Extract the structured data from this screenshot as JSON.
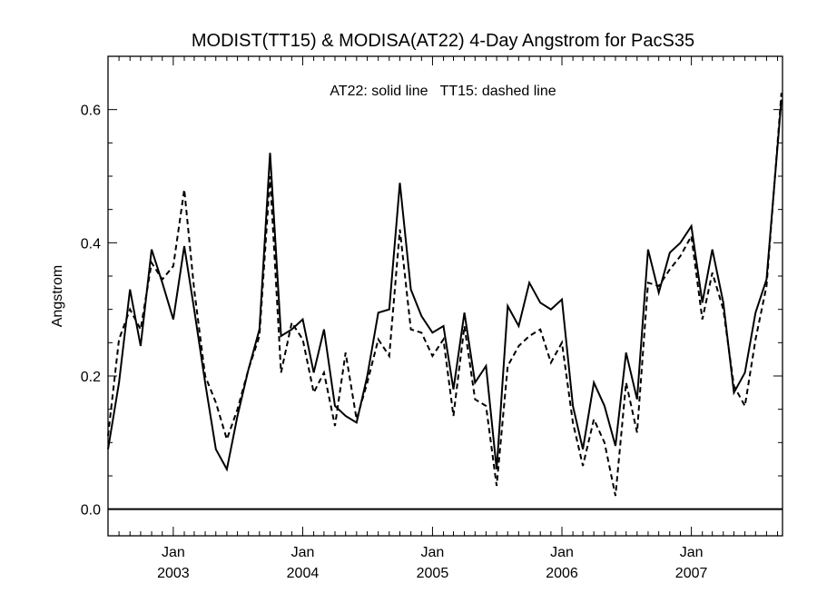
{
  "chart_data": {
    "type": "line",
    "title": "MODIST(TT15) & MODISA(AT22) 4-Day Angstrom for PacS35",
    "annotation": "AT22: solid line   TT15: dashed line",
    "xlabel": "",
    "ylabel": "Angstrom",
    "x_ticks": [
      {
        "month": "Jan",
        "year": "2003",
        "date": "2003-01-01"
      },
      {
        "month": "Jan",
        "year": "2004",
        "date": "2004-01-01"
      },
      {
        "month": "Jan",
        "year": "2005",
        "date": "2005-01-01"
      },
      {
        "month": "Jan",
        "year": "2006",
        "date": "2006-01-01"
      },
      {
        "month": "Jan",
        "year": "2007",
        "date": "2007-01-01"
      }
    ],
    "xlim": [
      "2002-07-01",
      "2007-09-15"
    ],
    "y_ticks": [
      "0.0",
      "0.2",
      "0.4",
      "0.6"
    ],
    "ylim": [
      -0.04,
      0.68
    ],
    "zero_line": 0.0,
    "series": [
      {
        "name": "AT22",
        "style": "solid",
        "color": "#000000",
        "points": [
          [
            "2002-07-01",
            0.09
          ],
          [
            "2002-08-01",
            0.19
          ],
          [
            "2002-09-01",
            0.33
          ],
          [
            "2002-10-01",
            0.245
          ],
          [
            "2002-11-01",
            0.39
          ],
          [
            "2002-12-01",
            0.34
          ],
          [
            "2003-01-01",
            0.285
          ],
          [
            "2003-02-01",
            0.395
          ],
          [
            "2003-03-01",
            0.3
          ],
          [
            "2003-04-01",
            0.19
          ],
          [
            "2003-05-01",
            0.09
          ],
          [
            "2003-06-01",
            0.06
          ],
          [
            "2003-07-01",
            0.14
          ],
          [
            "2003-08-01",
            0.21
          ],
          [
            "2003-09-01",
            0.27
          ],
          [
            "2003-10-01",
            0.535
          ],
          [
            "2003-11-01",
            0.26
          ],
          [
            "2003-12-01",
            0.27
          ],
          [
            "2004-01-01",
            0.285
          ],
          [
            "2004-02-01",
            0.205
          ],
          [
            "2004-03-01",
            0.27
          ],
          [
            "2004-04-01",
            0.155
          ],
          [
            "2004-05-01",
            0.14
          ],
          [
            "2004-06-01",
            0.13
          ],
          [
            "2004-07-01",
            0.2
          ],
          [
            "2004-08-01",
            0.295
          ],
          [
            "2004-09-01",
            0.3
          ],
          [
            "2004-10-01",
            0.49
          ],
          [
            "2004-11-01",
            0.33
          ],
          [
            "2004-12-01",
            0.29
          ],
          [
            "2005-01-01",
            0.265
          ],
          [
            "2005-02-01",
            0.275
          ],
          [
            "2005-03-01",
            0.18
          ],
          [
            "2005-04-01",
            0.295
          ],
          [
            "2005-05-01",
            0.19
          ],
          [
            "2005-06-01",
            0.215
          ],
          [
            "2005-07-01",
            0.06
          ],
          [
            "2005-08-01",
            0.305
          ],
          [
            "2005-09-01",
            0.275
          ],
          [
            "2005-10-01",
            0.34
          ],
          [
            "2005-11-01",
            0.31
          ],
          [
            "2005-12-01",
            0.3
          ],
          [
            "2006-01-01",
            0.315
          ],
          [
            "2006-02-01",
            0.155
          ],
          [
            "2006-03-01",
            0.09
          ],
          [
            "2006-04-01",
            0.19
          ],
          [
            "2006-05-01",
            0.155
          ],
          [
            "2006-06-01",
            0.095
          ],
          [
            "2006-07-01",
            0.235
          ],
          [
            "2006-08-01",
            0.165
          ],
          [
            "2006-09-01",
            0.39
          ],
          [
            "2006-10-01",
            0.325
          ],
          [
            "2006-11-01",
            0.385
          ],
          [
            "2006-12-01",
            0.4
          ],
          [
            "2007-01-01",
            0.425
          ],
          [
            "2007-02-01",
            0.31
          ],
          [
            "2007-03-01",
            0.39
          ],
          [
            "2007-04-01",
            0.31
          ],
          [
            "2007-05-01",
            0.175
          ],
          [
            "2007-06-01",
            0.205
          ],
          [
            "2007-07-01",
            0.295
          ],
          [
            "2007-08-01",
            0.345
          ],
          [
            "2007-09-12",
            0.615
          ]
        ]
      },
      {
        "name": "TT15",
        "style": "dashed",
        "color": "#000000",
        "points": [
          [
            "2002-07-01",
            0.11
          ],
          [
            "2002-08-01",
            0.255
          ],
          [
            "2002-09-01",
            0.3
          ],
          [
            "2002-10-01",
            0.27
          ],
          [
            "2002-11-01",
            0.37
          ],
          [
            "2002-12-01",
            0.345
          ],
          [
            "2003-01-01",
            0.365
          ],
          [
            "2003-02-01",
            0.48
          ],
          [
            "2003-03-01",
            0.33
          ],
          [
            "2003-04-01",
            0.2
          ],
          [
            "2003-05-01",
            0.16
          ],
          [
            "2003-06-01",
            0.105
          ],
          [
            "2003-07-01",
            0.15
          ],
          [
            "2003-08-01",
            0.21
          ],
          [
            "2003-09-01",
            0.26
          ],
          [
            "2003-10-01",
            0.5
          ],
          [
            "2003-11-01",
            0.205
          ],
          [
            "2003-12-01",
            0.28
          ],
          [
            "2004-01-01",
            0.255
          ],
          [
            "2004-02-01",
            0.175
          ],
          [
            "2004-03-01",
            0.205
          ],
          [
            "2004-04-01",
            0.125
          ],
          [
            "2004-05-01",
            0.235
          ],
          [
            "2004-06-01",
            0.135
          ],
          [
            "2004-07-01",
            0.19
          ],
          [
            "2004-08-01",
            0.255
          ],
          [
            "2004-09-01",
            0.23
          ],
          [
            "2004-10-01",
            0.42
          ],
          [
            "2004-11-01",
            0.27
          ],
          [
            "2004-12-01",
            0.265
          ],
          [
            "2005-01-01",
            0.23
          ],
          [
            "2005-02-01",
            0.255
          ],
          [
            "2005-03-01",
            0.14
          ],
          [
            "2005-04-01",
            0.275
          ],
          [
            "2005-05-01",
            0.165
          ],
          [
            "2005-06-01",
            0.155
          ],
          [
            "2005-07-01",
            0.035
          ],
          [
            "2005-08-01",
            0.215
          ],
          [
            "2005-09-01",
            0.245
          ],
          [
            "2005-10-01",
            0.26
          ],
          [
            "2005-11-01",
            0.27
          ],
          [
            "2005-12-01",
            0.22
          ],
          [
            "2006-01-01",
            0.25
          ],
          [
            "2006-02-01",
            0.13
          ],
          [
            "2006-03-01",
            0.065
          ],
          [
            "2006-04-01",
            0.135
          ],
          [
            "2006-05-01",
            0.1
          ],
          [
            "2006-06-01",
            0.02
          ],
          [
            "2006-07-01",
            0.19
          ],
          [
            "2006-08-01",
            0.115
          ],
          [
            "2006-09-01",
            0.34
          ],
          [
            "2006-10-01",
            0.335
          ],
          [
            "2006-11-01",
            0.36
          ],
          [
            "2006-12-01",
            0.38
          ],
          [
            "2007-01-01",
            0.41
          ],
          [
            "2007-02-01",
            0.285
          ],
          [
            "2007-03-01",
            0.355
          ],
          [
            "2007-04-01",
            0.3
          ],
          [
            "2007-05-01",
            0.185
          ],
          [
            "2007-06-01",
            0.155
          ],
          [
            "2007-07-01",
            0.255
          ],
          [
            "2007-08-01",
            0.335
          ],
          [
            "2007-09-12",
            0.625
          ]
        ]
      }
    ]
  }
}
